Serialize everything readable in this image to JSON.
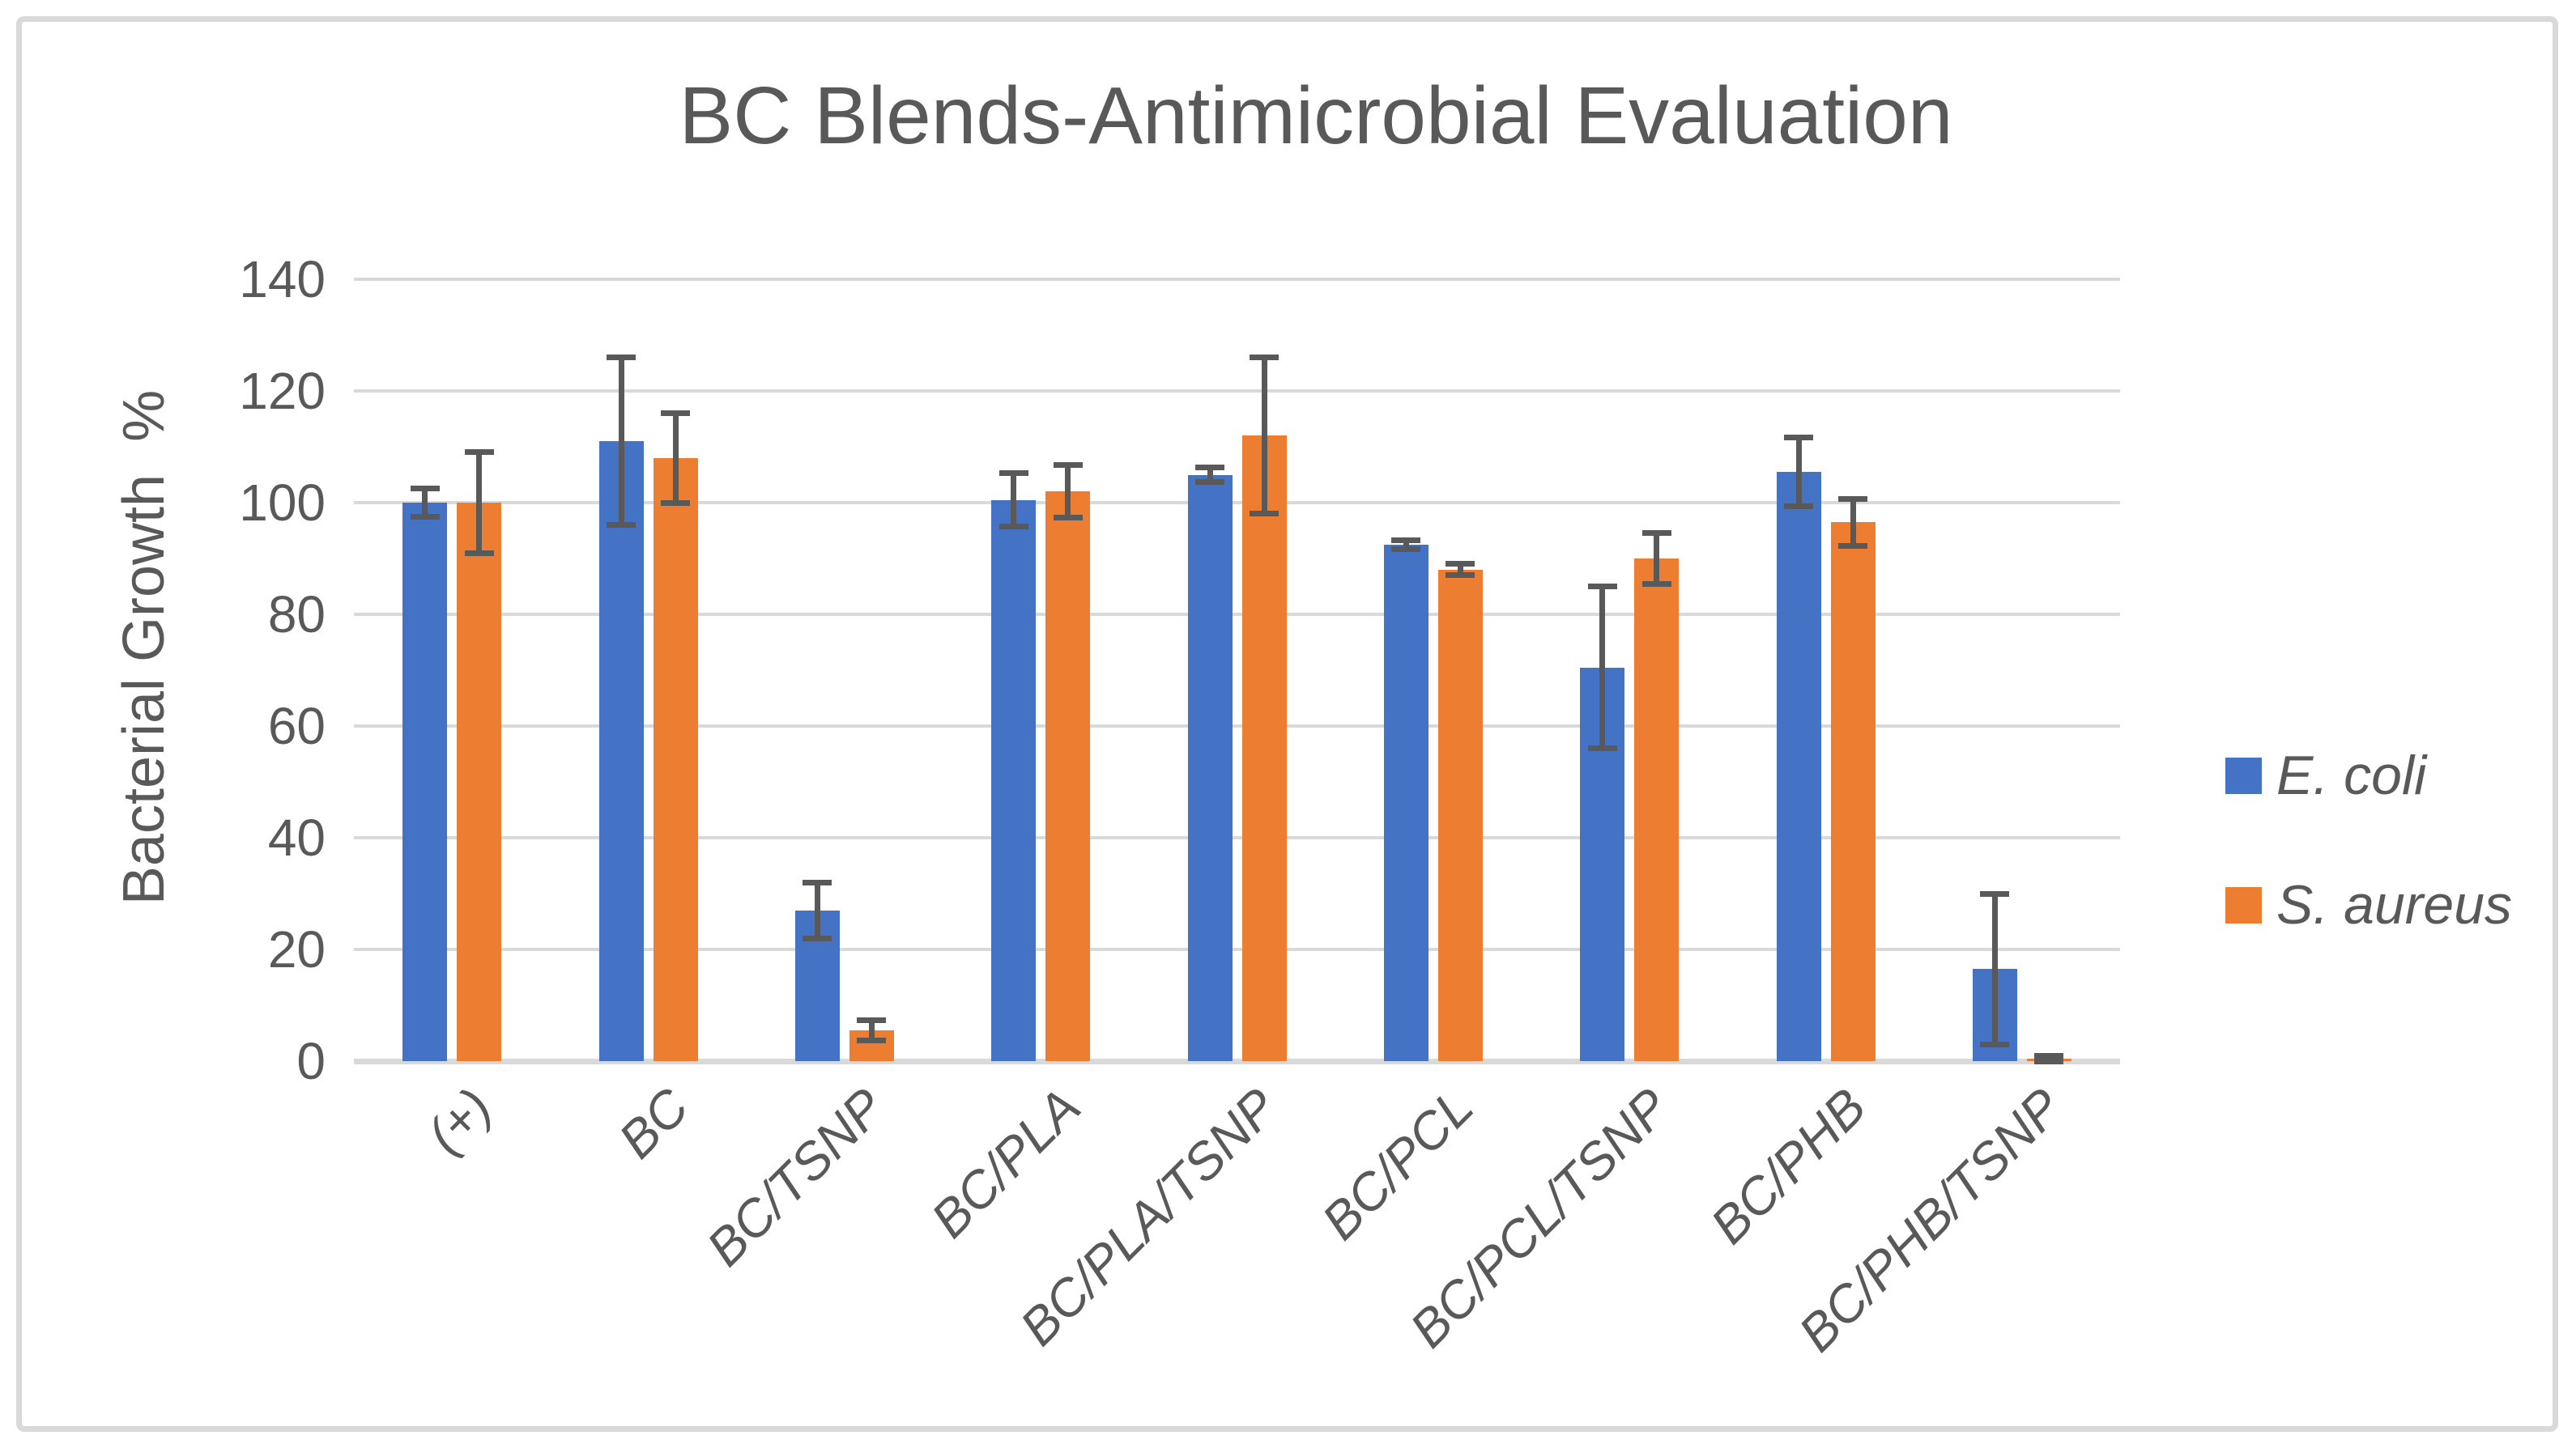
{
  "chart": {
    "title_label": "BC Blends-Antimicrobial Evaluation",
    "y_axis_title": "Bacterial Growth  %"
  },
  "colors": {
    "series_blue": "#4472C4",
    "series_orange": "#ED7D31",
    "gridline": "#D9D9D9",
    "frame_border": "#D9D9D9",
    "error_bar": "#595959",
    "text": "#595959",
    "background": "#FFFFFF"
  },
  "chart_data": {
    "type": "bar",
    "title": "BC Blends-Antimicrobial Evaluation",
    "xlabel": "",
    "ylabel": "Bacterial Growth  %",
    "ylim": [
      0,
      140
    ],
    "ytick_step": 20,
    "yticks": [
      0,
      20,
      40,
      60,
      80,
      100,
      120,
      140
    ],
    "grid": true,
    "legend_position": "right-middle",
    "error_bars": true,
    "categories": [
      "(+)",
      "BC",
      "BC/TSNP",
      "BC/PLA",
      "BC/PLA/TSNP",
      "BC/PCL",
      "BC/PCL/TSNP",
      "BC/PHB",
      "BC/PHB/TSNP"
    ],
    "series": [
      {
        "name": "E. coli",
        "color": "#4472C4",
        "values": [
          100,
          111,
          27,
          100.5,
          105,
          92.5,
          70.5,
          105.5,
          16.5
        ],
        "errors": [
          2.5,
          15,
          5,
          4.8,
          1.3,
          0.8,
          14.5,
          6.2,
          13.5
        ]
      },
      {
        "name": "S. aureus",
        "color": "#ED7D31",
        "values": [
          100,
          108,
          5.5,
          102,
          112,
          88,
          90,
          96.5,
          0.5
        ],
        "errors": [
          9,
          8,
          1.8,
          4.7,
          14,
          1,
          4.5,
          4.2,
          0.5
        ]
      }
    ]
  }
}
